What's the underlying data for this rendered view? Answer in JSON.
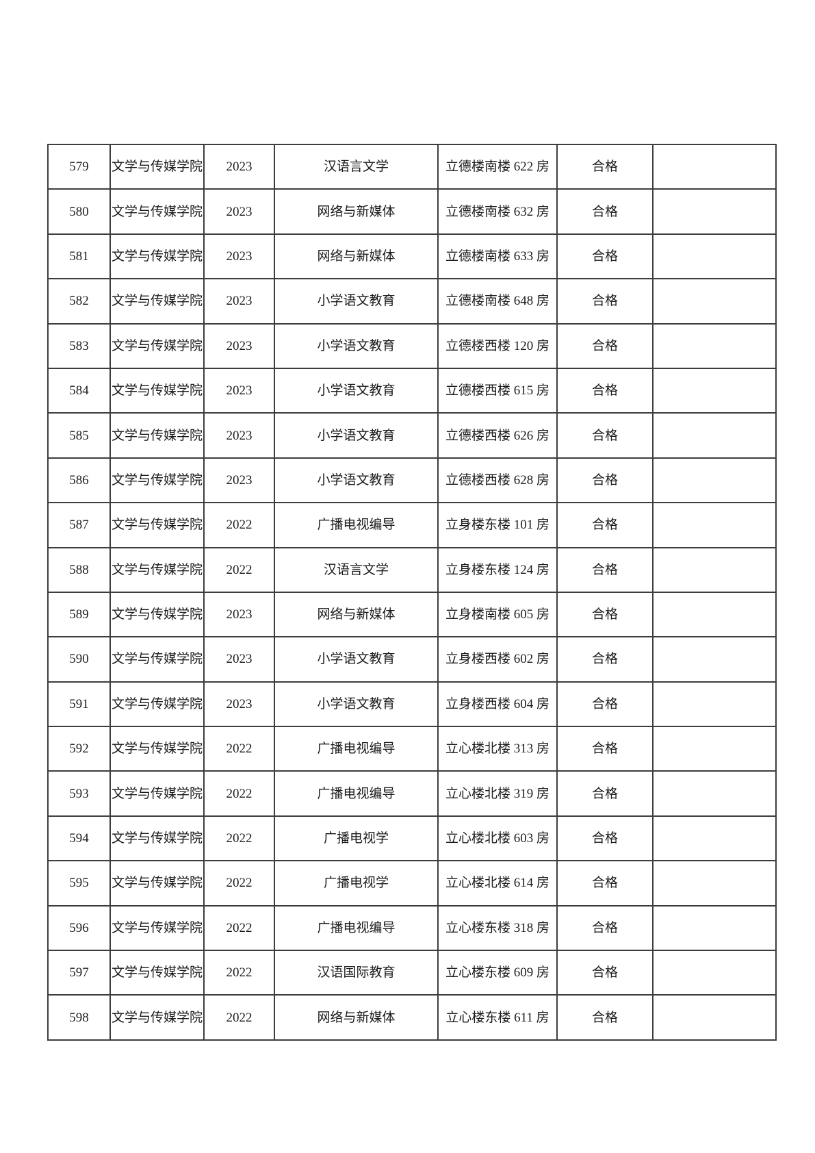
{
  "page": {
    "background_color": "#ffffff",
    "border_color": "#3d3d3d",
    "text_color": "#1b1b1b"
  },
  "table": {
    "cell_keys": [
      "no",
      "college",
      "year",
      "major",
      "location",
      "result",
      "note"
    ],
    "rows": [
      {
        "no": "579",
        "college": "文学与传媒学院",
        "year": "2023",
        "major": "汉语言文学",
        "location": "立德楼南楼 622 房",
        "result": "合格",
        "note": ""
      },
      {
        "no": "580",
        "college": "文学与传媒学院",
        "year": "2023",
        "major": "网络与新媒体",
        "location": "立德楼南楼 632 房",
        "result": "合格",
        "note": ""
      },
      {
        "no": "581",
        "college": "文学与传媒学院",
        "year": "2023",
        "major": "网络与新媒体",
        "location": "立德楼南楼 633 房",
        "result": "合格",
        "note": ""
      },
      {
        "no": "582",
        "college": "文学与传媒学院",
        "year": "2023",
        "major": "小学语文教育",
        "location": "立德楼南楼 648 房",
        "result": "合格",
        "note": ""
      },
      {
        "no": "583",
        "college": "文学与传媒学院",
        "year": "2023",
        "major": "小学语文教育",
        "location": "立德楼西楼 120 房",
        "result": "合格",
        "note": ""
      },
      {
        "no": "584",
        "college": "文学与传媒学院",
        "year": "2023",
        "major": "小学语文教育",
        "location": "立德楼西楼 615 房",
        "result": "合格",
        "note": ""
      },
      {
        "no": "585",
        "college": "文学与传媒学院",
        "year": "2023",
        "major": "小学语文教育",
        "location": "立德楼西楼 626 房",
        "result": "合格",
        "note": ""
      },
      {
        "no": "586",
        "college": "文学与传媒学院",
        "year": "2023",
        "major": "小学语文教育",
        "location": "立德楼西楼 628 房",
        "result": "合格",
        "note": ""
      },
      {
        "no": "587",
        "college": "文学与传媒学院",
        "year": "2022",
        "major": "广播电视编导",
        "location": "立身楼东楼 101 房",
        "result": "合格",
        "note": ""
      },
      {
        "no": "588",
        "college": "文学与传媒学院",
        "year": "2022",
        "major": "汉语言文学",
        "location": "立身楼东楼 124 房",
        "result": "合格",
        "note": ""
      },
      {
        "no": "589",
        "college": "文学与传媒学院",
        "year": "2023",
        "major": "网络与新媒体",
        "location": "立身楼南楼 605 房",
        "result": "合格",
        "note": ""
      },
      {
        "no": "590",
        "college": "文学与传媒学院",
        "year": "2023",
        "major": "小学语文教育",
        "location": "立身楼西楼 602 房",
        "result": "合格",
        "note": ""
      },
      {
        "no": "591",
        "college": "文学与传媒学院",
        "year": "2023",
        "major": "小学语文教育",
        "location": "立身楼西楼 604 房",
        "result": "合格",
        "note": ""
      },
      {
        "no": "592",
        "college": "文学与传媒学院",
        "year": "2022",
        "major": "广播电视编导",
        "location": "立心楼北楼 313 房",
        "result": "合格",
        "note": ""
      },
      {
        "no": "593",
        "college": "文学与传媒学院",
        "year": "2022",
        "major": "广播电视编导",
        "location": "立心楼北楼 319 房",
        "result": "合格",
        "note": ""
      },
      {
        "no": "594",
        "college": "文学与传媒学院",
        "year": "2022",
        "major": "广播电视学",
        "location": "立心楼北楼 603 房",
        "result": "合格",
        "note": ""
      },
      {
        "no": "595",
        "college": "文学与传媒学院",
        "year": "2022",
        "major": "广播电视学",
        "location": "立心楼北楼 614 房",
        "result": "合格",
        "note": ""
      },
      {
        "no": "596",
        "college": "文学与传媒学院",
        "year": "2022",
        "major": "广播电视编导",
        "location": "立心楼东楼 318 房",
        "result": "合格",
        "note": ""
      },
      {
        "no": "597",
        "college": "文学与传媒学院",
        "year": "2022",
        "major": "汉语国际教育",
        "location": "立心楼东楼 609 房",
        "result": "合格",
        "note": ""
      },
      {
        "no": "598",
        "college": "文学与传媒学院",
        "year": "2022",
        "major": "网络与新媒体",
        "location": "立心楼东楼 611 房",
        "result": "合格",
        "note": ""
      }
    ]
  }
}
